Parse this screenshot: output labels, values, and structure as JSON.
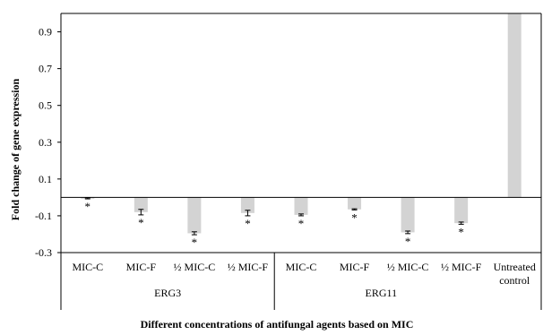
{
  "chart_data": {
    "type": "bar",
    "ylabel": "Fold change of gene expression",
    "xlabel": "Different concentrations of antifungal agents based on MIC",
    "ylim": [
      -0.3,
      1.0
    ],
    "yticks": [
      "0.9",
      "0.7",
      "0.5",
      "0.3",
      "0.1",
      "-0.1",
      "-0.3"
    ],
    "grid": false,
    "bar_color": "#d3d3d3",
    "categories": [
      {
        "label": "MIC-C",
        "group": "ERG3",
        "value": -0.005,
        "error": 0.003,
        "sig": "*"
      },
      {
        "label": "MIC-F",
        "group": "ERG3",
        "value": -0.08,
        "error": 0.015,
        "sig": "*"
      },
      {
        "label": "½ MIC-C",
        "group": "ERG3",
        "value": -0.195,
        "error": 0.008,
        "sig": "*"
      },
      {
        "label": "½ MIC-F",
        "group": "ERG3",
        "value": -0.085,
        "error": 0.015,
        "sig": "*"
      },
      {
        "label": "MIC-C",
        "group": "ERG11",
        "value": -0.095,
        "error": 0.005,
        "sig": "*"
      },
      {
        "label": "MIC-F",
        "group": "ERG11",
        "value": -0.065,
        "error": 0.003,
        "sig": "*"
      },
      {
        "label": "½ MIC-C",
        "group": "ERG11",
        "value": -0.19,
        "error": 0.007,
        "sig": "*"
      },
      {
        "label": "½ MIC-F",
        "group": "ERG11",
        "value": -0.14,
        "error": 0.006,
        "sig": "*"
      },
      {
        "label": "Untreated control",
        "group": "",
        "value": 1.0,
        "error": 0,
        "sig": ""
      }
    ],
    "groups": [
      "ERG3",
      "ERG11"
    ]
  }
}
